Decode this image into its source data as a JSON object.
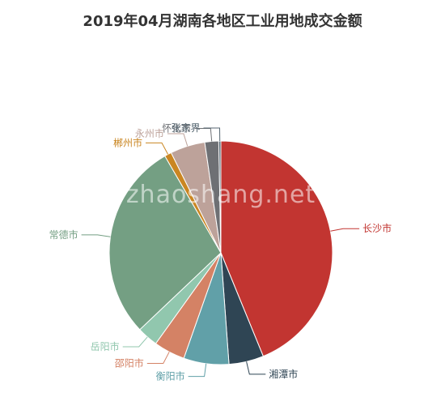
{
  "watermark": "zhaoshang.net",
  "chart_data": {
    "type": "pie",
    "title": "2019年04月湖南各地区工业用地成交金额",
    "slices": [
      {
        "label": "长沙市",
        "value": 43.5,
        "color": "#c23531"
      },
      {
        "label": "湘潭市",
        "value": 5.0,
        "color": "#2f4554"
      },
      {
        "label": "衡阳市",
        "value": 6.5,
        "color": "#61a0a8"
      },
      {
        "label": "邵阳市",
        "value": 4.5,
        "color": "#d48265"
      },
      {
        "label": "岳阳市",
        "value": 3.0,
        "color": "#91c7ae"
      },
      {
        "label": "常德市",
        "value": 28.5,
        "color": "#749f83"
      },
      {
        "label": "郴州市",
        "value": 1.0,
        "color": "#ca8622"
      },
      {
        "label": "永州市",
        "value": 5.0,
        "color": "#bda29a"
      },
      {
        "label": "怀化市",
        "value": 2.0,
        "color": "#6e7074"
      },
      {
        "label": "张家界",
        "value": 0.3,
        "color": "#546570"
      }
    ]
  }
}
